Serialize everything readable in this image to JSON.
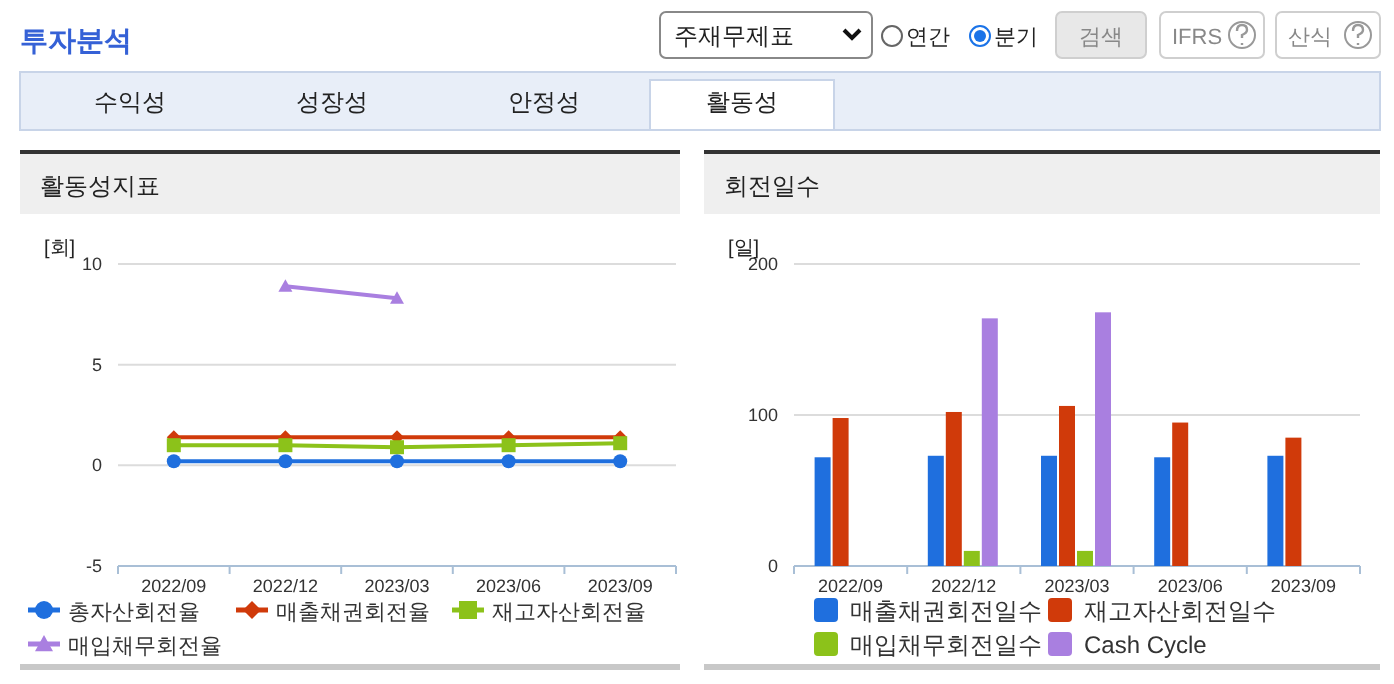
{
  "chart_data": [
    {
      "type": "other",
      "title": "투자분석",
      "annotations": [
        "주재무제표",
        "연간",
        "분기",
        "검색",
        "IFRS",
        "산식",
        "수익성",
        "성장성",
        "안정성",
        "활동성"
      ]
    },
    {
      "type": "line",
      "title": "활동성지표",
      "ylabel": "[회]",
      "categories": [
        "2022/09",
        "2022/12",
        "2023/03",
        "2023/06",
        "2023/09"
      ],
      "ylim": [
        -5,
        10
      ],
      "yticks": [
        -5,
        0,
        5,
        10
      ],
      "grid": "y",
      "legend": "bottom",
      "series": [
        {
          "name": "총자산회전율",
          "color": "#1f6fde",
          "marker": "circle",
          "values": [
            0.2,
            0.2,
            0.2,
            0.2,
            0.2
          ]
        },
        {
          "name": "매출채권회전율",
          "color": "#d03a0a",
          "marker": "diamond",
          "values": [
            1.4,
            1.4,
            1.4,
            1.4,
            1.4
          ]
        },
        {
          "name": "재고자산회전율",
          "color": "#8cc21a",
          "marker": "square",
          "values": [
            1.0,
            1.0,
            0.9,
            1.0,
            1.1
          ]
        },
        {
          "name": "매입채무회전율",
          "color": "#a97fe0",
          "marker": "triangle",
          "values": [
            null,
            8.9,
            8.3,
            null,
            null
          ]
        }
      ]
    },
    {
      "type": "bar",
      "title": "회전일수",
      "ylabel": "[일]",
      "categories": [
        "2022/09",
        "2022/12",
        "2023/03",
        "2023/06",
        "2023/09"
      ],
      "ylim": [
        0,
        200
      ],
      "yticks": [
        0,
        100,
        200
      ],
      "grid": "y",
      "legend": "bottom",
      "series": [
        {
          "name": "매출채권회전일수",
          "color": "#1f6fde",
          "values": [
            72,
            73,
            73,
            72,
            73
          ]
        },
        {
          "name": "재고자산회전일수",
          "color": "#d03a0a",
          "values": [
            98,
            102,
            106,
            95,
            85
          ]
        },
        {
          "name": "매입채무회전일수",
          "color": "#8cc21a",
          "values": [
            null,
            10,
            10,
            null,
            null
          ]
        },
        {
          "name": "Cash Cycle",
          "color": "#a97fe0",
          "values": [
            null,
            164,
            168,
            null,
            null
          ]
        }
      ]
    }
  ]
}
